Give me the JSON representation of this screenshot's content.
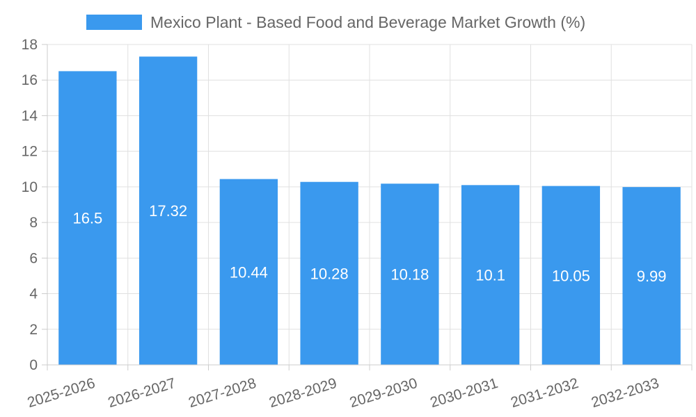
{
  "chart_data": {
    "type": "bar",
    "categories": [
      "2025-2026",
      "2026-2027",
      "2027-2028",
      "2028-2029",
      "2029-2030",
      "2030-2031",
      "2031-2032",
      "2032-2033"
    ],
    "series": [
      {
        "name": "Mexico Plant - Based Food and Beverage Market Growth (%)",
        "values": [
          16.5,
          17.32,
          10.44,
          10.28,
          10.18,
          10.1,
          10.05,
          9.99
        ],
        "color": "#3a99ee"
      }
    ],
    "data_labels": [
      "16.5",
      "17.32",
      "10.44",
      "10.28",
      "10.18",
      "10.1",
      "10.05",
      "9.99"
    ],
    "ylim": [
      0,
      18
    ],
    "yticks": [
      0,
      2,
      4,
      6,
      8,
      10,
      12,
      14,
      16,
      18
    ],
    "grid": true,
    "legend_position": "top-center",
    "xlabel": "",
    "ylabel": ""
  }
}
